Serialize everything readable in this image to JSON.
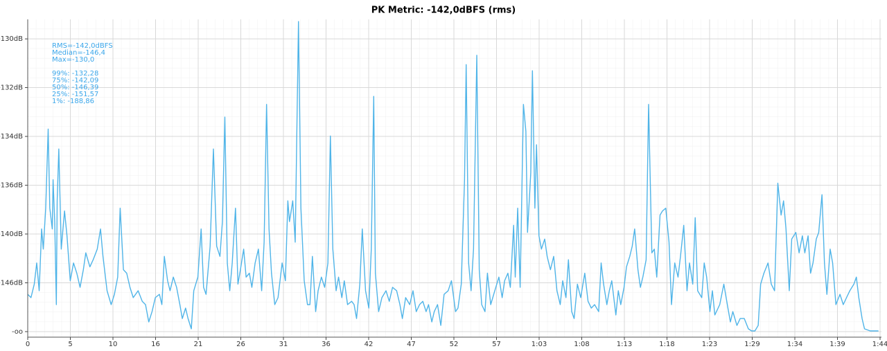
{
  "chart_data": {
    "type": "line",
    "title": "PK Metric: -142,0dBFS (rms)",
    "annotations": [
      "RMS=-142,0dBFS",
      "Median=-146,4",
      "Max=-130,0",
      "99%: -132,28",
      "75%: -142,09",
      "50%: -146,39",
      "25%: -151,57",
      "1%: -188,86"
    ],
    "color": "#4fb4e8",
    "yscale": "amplitude",
    "grid": true,
    "xlim": [
      0,
      104.2
    ],
    "xticks": [
      0,
      {
        "value": 5.21,
        "label": "5"
      },
      {
        "value": 10.42,
        "label": "10"
      },
      {
        "value": 15.63,
        "label": "16"
      },
      {
        "value": 20.84,
        "label": "21"
      },
      {
        "value": 26.05,
        "label": "26"
      },
      {
        "value": 31.26,
        "label": "31"
      },
      {
        "value": 36.47,
        "label": "36"
      },
      {
        "value": 41.68,
        "label": "42"
      },
      {
        "value": 46.89,
        "label": "47"
      },
      {
        "value": 52.1,
        "label": "52"
      },
      {
        "value": 57.31,
        "label": "57"
      },
      {
        "value": 62.52,
        "label": "1:03"
      },
      {
        "value": 67.73,
        "label": "1:08"
      },
      {
        "value": 72.94,
        "label": "1:13"
      },
      {
        "value": 78.15,
        "label": "1:18"
      },
      {
        "value": 83.36,
        "label": "1:23"
      },
      {
        "value": 88.57,
        "label": "1:29"
      },
      {
        "value": 93.78,
        "label": "1:34"
      },
      {
        "value": 98.99,
        "label": "1:39"
      },
      {
        "value": 104.2,
        "label": "1:44"
      }
    ],
    "ylim": [
      null,
      -129.44
    ],
    "yticks": [
      {
        "value": -130,
        "label": "-130dB"
      },
      {
        "value": -131.58,
        "label": "-132dB"
      },
      {
        "value": -133.52,
        "label": "-134dB"
      },
      {
        "value": -136.02,
        "label": "-136dB"
      },
      {
        "value": -139.54,
        "label": "-140dB"
      },
      {
        "value": -145.56,
        "label": "-146dB"
      },
      {
        "value": null,
        "label": "-oo"
      }
    ],
    "x": [
      0,
      0.4,
      0.8,
      1.1,
      1.4,
      1.7,
      1.9,
      2.2,
      2.5,
      2.7,
      3.0,
      3.1,
      3.3,
      3.5,
      3.6,
      3.8,
      4.1,
      4.5,
      4.8,
      5.2,
      5.6,
      6.0,
      6.4,
      6.8,
      7.1,
      7.6,
      8.0,
      8.5,
      8.9,
      9.2,
      9.7,
      10.2,
      10.6,
      11.0,
      11.3,
      11.7,
      12.1,
      12.5,
      12.9,
      13.5,
      14.0,
      14.4,
      14.8,
      15.2,
      15.6,
      16.1,
      16.4,
      16.7,
      17.1,
      17.4,
      17.8,
      18.2,
      18.6,
      18.9,
      19.3,
      19.6,
      20.0,
      20.3,
      20.8,
      21.2,
      21.5,
      21.8,
      22.3,
      22.7,
      23.1,
      23.5,
      23.8,
      24.1,
      24.4,
      24.7,
      25.0,
      25.4,
      25.7,
      26.0,
      26.4,
      26.7,
      27.1,
      27.4,
      27.8,
      28.2,
      28.6,
      28.9,
      29.2,
      29.5,
      29.8,
      30.2,
      30.6,
      31.1,
      31.5,
      31.8,
      32.0,
      32.4,
      32.7,
      33.1,
      33.4,
      33.8,
      34.2,
      34.5,
      34.8,
      35.2,
      35.5,
      35.9,
      36.3,
      36.7,
      37.0,
      37.3,
      37.7,
      38.0,
      38.4,
      38.7,
      39.1,
      39.6,
      39.9,
      40.2,
      40.6,
      40.9,
      41.3,
      41.7,
      42.0,
      42.3,
      42.5,
      42.9,
      43.3,
      43.8,
      44.2,
      44.6,
      45.1,
      45.5,
      45.8,
      46.2,
      46.7,
      47.1,
      47.5,
      47.9,
      48.3,
      48.7,
      49.0,
      49.4,
      49.7,
      50.1,
      50.5,
      50.9,
      51.4,
      51.8,
      52.3,
      52.6,
      53.0,
      53.4,
      53.6,
      53.9,
      54.2,
      54.5,
      54.9,
      55.2,
      55.5,
      55.9,
      56.2,
      56.6,
      57.1,
      57.6,
      58.0,
      58.3,
      58.7,
      59.0,
      59.4,
      59.6,
      59.9,
      60.2,
      60.6,
      60.9,
      61.1,
      61.5,
      61.7,
      62.0,
      62.2,
      62.5,
      62.8,
      63.2,
      63.5,
      63.9,
      64.3,
      64.7,
      65.1,
      65.4,
      65.8,
      66.1,
      66.5,
      66.8,
      67.2,
      67.6,
      68.1,
      68.5,
      68.9,
      69.3,
      69.8,
      70.1,
      70.4,
      70.8,
      71.1,
      71.4,
      71.9,
      72.2,
      72.5,
      72.9,
      73.2,
      73.6,
      73.9,
      74.2,
      74.6,
      74.9,
      75.2,
      75.6,
      75.9,
      76.3,
      76.6,
      76.9,
      77.3,
      77.6,
      78.0,
      78.4,
      78.7,
      79.1,
      79.5,
      79.8,
      80.2,
      80.6,
      80.9,
      81.3,
      81.6,
      81.9,
      82.4,
      82.7,
      83.0,
      83.4,
      83.7,
      84.0,
      84.6,
      85.1,
      85.6,
      85.9,
      86.2,
      86.7,
      87.1,
      87.6,
      88.1,
      88.5,
      88.9,
      89.3,
      89.6,
      90.0,
      90.5,
      90.9,
      91.3,
      91.7,
      92.1,
      92.4,
      92.7,
      93.1,
      93.4,
      93.9,
      94.3,
      94.7,
      95.0,
      95.4,
      95.7,
      96.0,
      96.4,
      96.7,
      97.1,
      97.4,
      97.7,
      98.1,
      98.4,
      98.8,
      99.3,
      99.7,
      100.1,
      100.5,
      101.0,
      101.3,
      101.6,
      102.0,
      102.3,
      103.0,
      104.0
    ],
    "values": [
      -147.9,
      -148.7,
      -145.8,
      -142.6,
      -147.1,
      -139.1,
      -141.0,
      -137.5,
      -133.2,
      -137.5,
      -139.1,
      -135.7,
      -138.5,
      -150.7,
      -137.0,
      -134.1,
      -141.0,
      -137.7,
      -139.7,
      -145.2,
      -142.6,
      -144.0,
      -146.4,
      -143.5,
      -141.4,
      -143.1,
      -142.2,
      -141.0,
      -139.1,
      -141.8,
      -147.1,
      -150.7,
      -147.9,
      -144.6,
      -137.5,
      -143.5,
      -144.0,
      -146.4,
      -148.7,
      -147.1,
      -149.7,
      -150.7,
      -159.6,
      -153.3,
      -148.7,
      -147.9,
      -150.7,
      -141.8,
      -145.2,
      -147.1,
      -144.6,
      -146.4,
      -150.7,
      -157.0,
      -151.9,
      -157.0,
      -170.5,
      -147.1,
      -144.6,
      -139.1,
      -146.4,
      -147.9,
      -140.7,
      -134.1,
      -140.7,
      -141.8,
      -138.5,
      -132.7,
      -142.6,
      -147.1,
      -142.6,
      -137.5,
      -145.8,
      -143.5,
      -141.0,
      -144.6,
      -144.0,
      -146.4,
      -142.6,
      -141.0,
      -147.1,
      -140.3,
      -132.2,
      -139.1,
      -144.0,
      -150.7,
      -148.7,
      -142.6,
      -145.2,
      -137.0,
      -138.5,
      -137.0,
      -140.3,
      -129.5,
      -137.5,
      -145.2,
      -150.7,
      -150.7,
      -141.8,
      -153.3,
      -147.1,
      -144.6,
      -146.4,
      -142.6,
      -133.5,
      -141.0,
      -147.1,
      -144.6,
      -148.7,
      -145.2,
      -150.7,
      -149.7,
      -150.7,
      -157.0,
      -145.8,
      -139.1,
      -147.1,
      -151.9,
      -141.0,
      -131.9,
      -144.0,
      -153.3,
      -148.7,
      -147.1,
      -149.7,
      -146.4,
      -147.1,
      -150.7,
      -157.0,
      -148.7,
      -150.7,
      -147.1,
      -153.3,
      -150.7,
      -149.7,
      -153.3,
      -150.7,
      -159.6,
      -153.3,
      -150.7,
      -163.5,
      -147.9,
      -147.1,
      -145.2,
      -153.3,
      -151.9,
      -145.8,
      -135.7,
      -130.8,
      -142.6,
      -147.1,
      -141.0,
      -130.5,
      -143.5,
      -150.7,
      -153.3,
      -144.0,
      -150.7,
      -147.1,
      -144.6,
      -148.7,
      -145.2,
      -144.0,
      -146.4,
      -138.8,
      -144.6,
      -137.5,
      -146.4,
      -132.2,
      -133.3,
      -139.4,
      -135.3,
      -131.0,
      -137.5,
      -133.9,
      -139.7,
      -141.0,
      -140.0,
      -141.8,
      -143.5,
      -141.8,
      -147.1,
      -150.7,
      -145.2,
      -148.7,
      -142.2,
      -153.3,
      -157.0,
      -145.8,
      -148.7,
      -144.0,
      -149.7,
      -151.9,
      -150.7,
      -153.3,
      -142.6,
      -145.8,
      -150.7,
      -147.1,
      -145.2,
      -154.9,
      -147.1,
      -150.7,
      -146.4,
      -143.1,
      -141.8,
      -140.7,
      -139.1,
      -143.5,
      -146.4,
      -144.6,
      -142.2,
      -132.2,
      -141.4,
      -141.0,
      -144.6,
      -138.0,
      -137.7,
      -137.5,
      -140.3,
      -150.7,
      -142.6,
      -144.6,
      -141.8,
      -138.8,
      -147.1,
      -142.6,
      -145.8,
      -138.2,
      -147.1,
      -148.7,
      -142.6,
      -144.6,
      -153.3,
      -147.1,
      -154.9,
      -150.7,
      -145.8,
      -151.9,
      -159.6,
      -153.3,
      -163.5,
      -157.0,
      -157.0,
      -170.5,
      -182.5,
      -182.5,
      -163.5,
      -145.8,
      -144.0,
      -142.6,
      -145.8,
      -147.1,
      -135.9,
      -138.0,
      -137.0,
      -139.1,
      -147.1,
      -140.0,
      -139.4,
      -141.4,
      -139.7,
      -141.4,
      -139.7,
      -144.0,
      -142.6,
      -140.0,
      -139.4,
      -136.6,
      -142.6,
      -147.9,
      -141.0,
      -142.6,
      -150.7,
      -147.9,
      -150.7,
      -148.7,
      -147.1,
      -145.8,
      -144.6,
      -148.7,
      -157.0,
      -170.5,
      -182.5,
      -182.5
    ]
  }
}
